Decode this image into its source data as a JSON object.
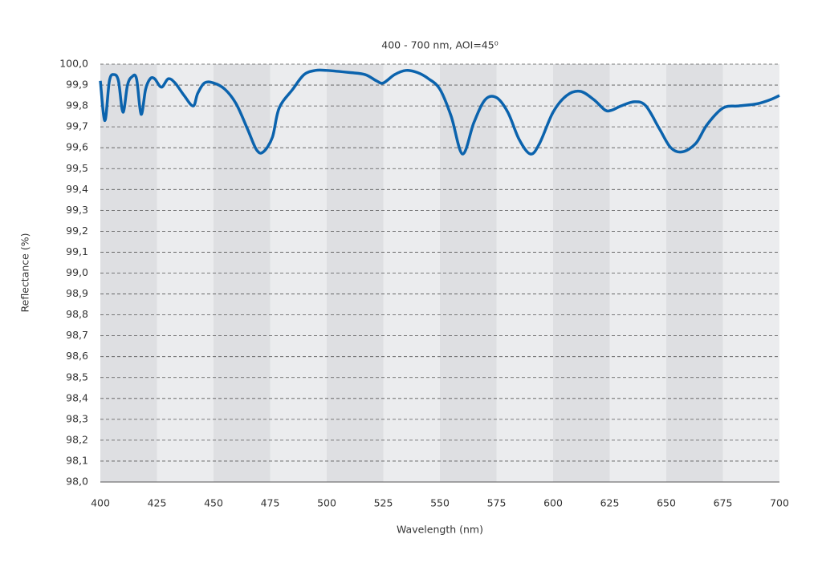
{
  "chart_data": {
    "type": "line",
    "title": "400 - 700 nm, AOI=45⁰",
    "xlabel": "Wavelength (nm)",
    "ylabel": "Reflectance (%)",
    "xlim": [
      400,
      700
    ],
    "ylim": [
      98.0,
      100.0
    ],
    "xticks": [
      400,
      425,
      450,
      475,
      500,
      525,
      550,
      575,
      600,
      625,
      650,
      675,
      700
    ],
    "yticks": [
      {
        "value": 98.0,
        "label": "98,0"
      },
      {
        "value": 98.1,
        "label": "98,1"
      },
      {
        "value": 98.2,
        "label": "98,2"
      },
      {
        "value": 98.3,
        "label": "98,3"
      },
      {
        "value": 98.4,
        "label": "98,4"
      },
      {
        "value": 98.5,
        "label": "98,5"
      },
      {
        "value": 98.6,
        "label": "98,6"
      },
      {
        "value": 98.7,
        "label": "98,7"
      },
      {
        "value": 98.8,
        "label": "98,8"
      },
      {
        "value": 98.9,
        "label": "98,9"
      },
      {
        "value": 99.0,
        "label": "99,0"
      },
      {
        "value": 99.1,
        "label": "99,1"
      },
      {
        "value": 99.2,
        "label": "99,2"
      },
      {
        "value": 99.3,
        "label": "99,3"
      },
      {
        "value": 99.4,
        "label": "99,4"
      },
      {
        "value": 99.5,
        "label": "99,5"
      },
      {
        "value": 99.6,
        "label": "99,6"
      },
      {
        "value": 99.7,
        "label": "99,7"
      },
      {
        "value": 99.8,
        "label": "99,8"
      },
      {
        "value": 99.9,
        "label": "99,9"
      },
      {
        "value": 100.0,
        "label": "100,0"
      }
    ],
    "grid": true,
    "series": [
      {
        "color": "#0b63ad",
        "x": [
          400,
          402,
          404,
          406,
          408,
          410,
          412,
          414,
          416,
          418,
          420,
          422,
          424,
          427,
          430,
          433,
          437,
          441,
          443,
          446,
          450,
          455,
          460,
          465,
          469,
          472,
          476,
          479,
          485,
          490,
          495,
          500,
          510,
          517,
          522,
          525,
          530,
          535,
          540,
          545,
          550,
          555,
          560,
          565,
          570,
          575,
          580,
          585,
          590,
          594,
          600,
          606,
          612,
          618,
          623,
          626,
          630,
          636,
          641,
          647,
          652,
          657,
          663,
          668,
          675,
          682,
          690,
          696,
          700
        ],
        "values": [
          99.92,
          99.73,
          99.92,
          99.95,
          99.92,
          99.77,
          99.9,
          99.94,
          99.93,
          99.76,
          99.88,
          99.93,
          99.93,
          99.89,
          99.93,
          99.91,
          99.85,
          99.8,
          99.86,
          99.91,
          99.91,
          99.88,
          99.81,
          99.69,
          99.59,
          99.58,
          99.65,
          99.79,
          99.88,
          99.95,
          99.97,
          99.97,
          99.96,
          99.95,
          99.92,
          99.91,
          99.95,
          99.97,
          99.96,
          99.93,
          99.88,
          99.75,
          99.57,
          99.72,
          99.83,
          99.84,
          99.77,
          99.64,
          99.57,
          99.62,
          99.77,
          99.85,
          99.87,
          99.83,
          99.78,
          99.78,
          99.8,
          99.82,
          99.8,
          99.69,
          99.6,
          99.58,
          99.62,
          99.71,
          99.79,
          99.8,
          99.81,
          99.83,
          99.85
        ]
      }
    ]
  }
}
